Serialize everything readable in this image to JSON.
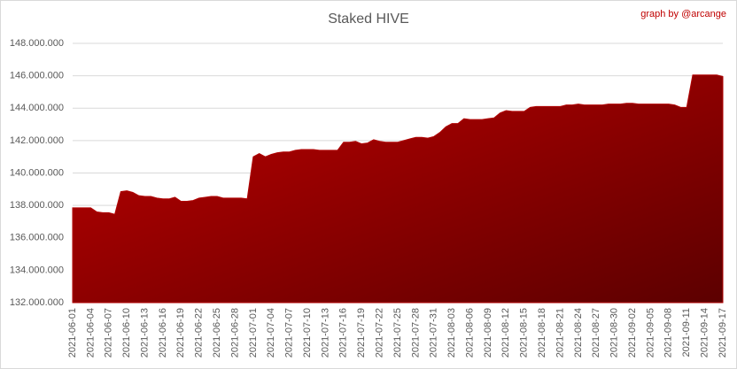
{
  "chart_data": {
    "type": "area",
    "title": "Staked HIVE",
    "annotation": "graph by @arcange",
    "color": "#b00000",
    "grid": true,
    "categories": [
      "2021-06-01",
      null,
      null,
      "2021-06-04",
      null,
      null,
      "2021-06-07",
      null,
      null,
      "2021-06-10",
      null,
      null,
      "2021-06-13",
      null,
      null,
      "2021-06-16",
      null,
      null,
      "2021-06-19",
      null,
      null,
      "2021-06-22",
      null,
      null,
      "2021-06-25",
      null,
      null,
      "2021-06-28",
      null,
      null,
      "2021-07-01",
      null,
      null,
      "2021-07-04",
      null,
      null,
      "2021-07-07",
      null,
      null,
      "2021-07-10",
      null,
      null,
      "2021-07-13",
      null,
      null,
      "2021-07-16",
      null,
      null,
      "2021-07-19",
      null,
      null,
      "2021-07-22",
      null,
      null,
      "2021-07-25",
      null,
      null,
      "2021-07-28",
      null,
      null,
      "2021-07-31",
      null,
      null,
      "2021-08-03",
      null,
      null,
      "2021-08-06",
      null,
      null,
      "2021-08-09",
      null,
      null,
      "2021-08-12",
      null,
      null,
      "2021-08-15",
      null,
      null,
      "2021-08-18",
      null,
      null,
      "2021-08-21",
      null,
      null,
      "2021-08-24",
      null,
      null,
      "2021-08-27",
      null,
      null,
      "2021-08-30",
      null,
      null,
      "2021-09-02",
      null,
      null,
      "2021-09-05",
      null,
      null,
      "2021-09-08",
      null,
      null,
      "2021-09-11",
      null,
      null,
      "2021-09-14",
      null,
      null,
      "2021-09-17"
    ],
    "values": [
      137850000,
      137850000,
      137850000,
      137850000,
      137600000,
      137550000,
      137550000,
      137450000,
      138850000,
      138900000,
      138800000,
      138600000,
      138550000,
      138550000,
      138450000,
      138400000,
      138400000,
      138500000,
      138250000,
      138250000,
      138300000,
      138450000,
      138500000,
      138550000,
      138550000,
      138450000,
      138450000,
      138450000,
      138450000,
      138400000,
      141000000,
      141200000,
      141000000,
      141150000,
      141250000,
      141300000,
      141300000,
      141400000,
      141450000,
      141450000,
      141450000,
      141400000,
      141400000,
      141400000,
      141400000,
      141900000,
      141900000,
      141950000,
      141800000,
      141850000,
      142050000,
      141950000,
      141900000,
      141900000,
      141900000,
      142000000,
      142100000,
      142200000,
      142200000,
      142150000,
      142250000,
      142500000,
      142850000,
      143050000,
      143050000,
      143350000,
      143300000,
      143300000,
      143300000,
      143350000,
      143400000,
      143700000,
      143850000,
      143800000,
      143800000,
      143800000,
      144050000,
      144100000,
      144100000,
      144100000,
      144100000,
      144100000,
      144200000,
      144200000,
      144250000,
      144200000,
      144200000,
      144200000,
      144200000,
      144250000,
      144250000,
      144250000,
      144300000,
      144300000,
      144250000,
      144250000,
      144250000,
      144250000,
      144250000,
      144250000,
      144200000,
      144050000,
      144050000,
      146050000,
      146050000,
      146050000,
      146050000,
      146050000,
      145950000
    ],
    "ylim": [
      132000000,
      148000000
    ],
    "yticks": [
      {
        "value": 132000000,
        "label": "132.000.000"
      },
      {
        "value": 134000000,
        "label": "134.000.000"
      },
      {
        "value": 136000000,
        "label": "136.000.000"
      },
      {
        "value": 138000000,
        "label": "138.000.000"
      },
      {
        "value": 140000000,
        "label": "140.000.000"
      },
      {
        "value": 142000000,
        "label": "142.000.000"
      },
      {
        "value": 144000000,
        "label": "144.000.000"
      },
      {
        "value": 146000000,
        "label": "146.000.000"
      },
      {
        "value": 148000000,
        "label": "148.000.000"
      }
    ]
  }
}
